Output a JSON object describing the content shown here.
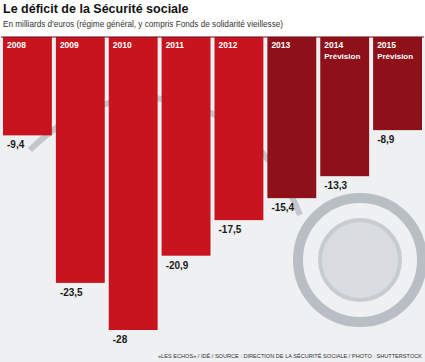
{
  "chart_data": {
    "type": "bar",
    "title": "Le déficit de la Sécurité sociale",
    "subtitle": "En milliards d'euros (régime général, y compris Fonds de solidarité vieillesse)",
    "categories": [
      "2008",
      "2009",
      "2010",
      "2011",
      "2012",
      "2013",
      "2014",
      "2015"
    ],
    "values": [
      -9.4,
      -23.5,
      -28,
      -20.9,
      -17.5,
      -15.4,
      -13.3,
      -8.9
    ],
    "value_labels": [
      "-9,4",
      "-23,5",
      "-28",
      "-20,9",
      "-17,5",
      "-15,4",
      "-13,3",
      "-8,9"
    ],
    "colors": [
      "#c8141e",
      "#c8141e",
      "#c8141e",
      "#c8141e",
      "#c8141e",
      "#8e1019",
      "#8e1019",
      "#8e1019"
    ],
    "annotations": [
      {
        "category": "2014",
        "text": "Prévision"
      },
      {
        "category": "2015",
        "text": "Prévision"
      }
    ],
    "source": "«LES ECHOS» / IDÉ / SOURCE : DIRECTION DE LA SÉCURITÉ SOCIALE / PHOTO : SHUTTERSTOCK",
    "ylim": [
      -28,
      0
    ],
    "data_labels": true,
    "tick_labels": "x",
    "grid": false
  }
}
